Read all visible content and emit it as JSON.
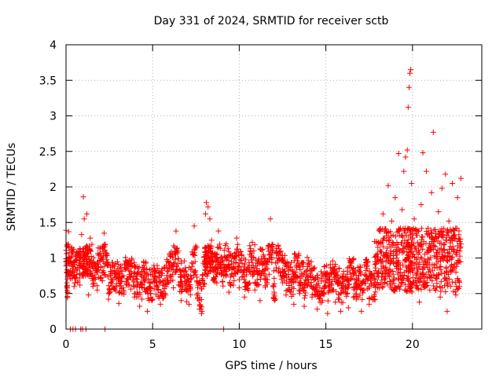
{
  "chart_data": {
    "type": "scatter",
    "title": "Day 331 of 2024, SRMTID for receiver sctb",
    "xlabel": "GPS time / hours",
    "ylabel": "SRMTID / TECUs",
    "xlim": [
      0,
      24
    ],
    "ylim": [
      0,
      4
    ],
    "grid": true,
    "x_ticks": [
      0,
      5,
      10,
      15,
      20
    ],
    "x_tick_labels": [
      "0",
      "5",
      "10",
      "15",
      "20"
    ],
    "y_ticks": [
      0,
      0.5,
      1,
      1.5,
      2,
      2.5,
      3,
      3.5,
      4
    ],
    "y_tick_labels": [
      "0",
      "0.5",
      "1",
      "1.5",
      "2",
      "2.5",
      "3",
      "3.5",
      "4"
    ],
    "marker": "+",
    "color": "#ff0000",
    "series": [
      {
        "name": "SRMTID",
        "points": [
          [
            0.0,
            1.39
          ],
          [
            0.05,
            0.65
          ],
          [
            0.1,
            0.52
          ],
          [
            0.15,
            1.37
          ],
          [
            0.25,
            0.82
          ],
          [
            0.35,
            1.12
          ],
          [
            0.45,
            0.95
          ],
          [
            0.55,
            0.72
          ],
          [
            0.65,
            1.05
          ],
          [
            0.8,
            0.62
          ],
          [
            0.9,
            1.33
          ],
          [
            1.0,
            1.86
          ],
          [
            1.05,
            1.55
          ],
          [
            1.15,
            0.85
          ],
          [
            1.2,
            1.62
          ],
          [
            1.3,
            0.48
          ],
          [
            1.4,
            1.28
          ],
          [
            1.5,
            0.75
          ],
          [
            1.65,
            0.92
          ],
          [
            1.8,
            0.55
          ],
          [
            1.95,
            1.14
          ],
          [
            2.1,
            0.68
          ],
          [
            2.2,
            1.35
          ],
          [
            2.3,
            1.05
          ],
          [
            2.45,
            0.42
          ],
          [
            2.6,
            0.78
          ],
          [
            2.75,
            0.58
          ],
          [
            2.9,
            0.82
          ],
          [
            3.05,
            0.36
          ],
          [
            3.2,
            0.72
          ],
          [
            3.35,
            0.52
          ],
          [
            3.5,
            0.95
          ],
          [
            3.65,
            0.62
          ],
          [
            3.8,
            0.88
          ],
          [
            3.95,
            0.45
          ],
          [
            4.1,
            0.7
          ],
          [
            4.25,
            0.32
          ],
          [
            4.4,
            0.58
          ],
          [
            4.55,
            0.8
          ],
          [
            4.7,
            0.25
          ],
          [
            4.85,
            0.6
          ],
          [
            5.0,
            0.42
          ],
          [
            5.15,
            0.75
          ],
          [
            5.3,
            0.55
          ],
          [
            5.45,
            0.35
          ],
          [
            5.6,
            0.68
          ],
          [
            5.75,
            0.48
          ],
          [
            5.9,
            0.85
          ],
          [
            6.05,
            1.02
          ],
          [
            6.2,
            0.58
          ],
          [
            6.35,
            1.38
          ],
          [
            6.5,
            0.62
          ],
          [
            6.65,
            0.4
          ],
          [
            6.8,
            0.82
          ],
          [
            6.95,
            0.55
          ],
          [
            7.1,
            0.35
          ],
          [
            7.25,
            0.72
          ],
          [
            7.4,
            1.45
          ],
          [
            7.55,
            0.48
          ],
          [
            7.7,
            0.28
          ],
          [
            7.85,
            0.25
          ],
          [
            8.0,
            0.95
          ],
          [
            8.05,
            1.62
          ],
          [
            8.1,
            1.78
          ],
          [
            8.2,
            1.72
          ],
          [
            8.3,
            1.55
          ],
          [
            8.4,
            1.25
          ],
          [
            8.5,
            0.82
          ],
          [
            8.6,
            1.05
          ],
          [
            8.7,
            0.65
          ],
          [
            8.8,
            1.38
          ],
          [
            8.95,
            0.9
          ],
          [
            9.1,
            0.75
          ],
          [
            9.25,
            1.2
          ],
          [
            9.4,
            0.52
          ],
          [
            9.55,
            0.95
          ],
          [
            9.7,
            0.68
          ],
          [
            9.85,
            1.28
          ],
          [
            10.0,
            0.58
          ],
          [
            10.15,
            1.05
          ],
          [
            10.3,
            0.45
          ],
          [
            10.45,
            0.85
          ],
          [
            10.6,
            0.65
          ],
          [
            10.75,
            1.22
          ],
          [
            10.9,
            0.55
          ],
          [
            11.05,
            0.92
          ],
          [
            11.2,
            0.4
          ],
          [
            11.35,
            1.12
          ],
          [
            11.5,
            0.7
          ],
          [
            11.65,
            0.85
          ],
          [
            11.8,
            1.55
          ],
          [
            11.95,
            0.6
          ],
          [
            12.1,
            0.42
          ],
          [
            12.25,
            1.18
          ],
          [
            12.4,
            0.75
          ],
          [
            12.55,
            0.95
          ],
          [
            12.7,
            0.48
          ],
          [
            12.85,
            0.82
          ],
          [
            13.0,
            0.65
          ],
          [
            13.15,
            0.35
          ],
          [
            13.3,
            1.02
          ],
          [
            13.45,
            0.55
          ],
          [
            13.6,
            0.78
          ],
          [
            13.75,
            0.32
          ],
          [
            13.9,
            0.62
          ],
          [
            14.05,
            0.9
          ],
          [
            14.2,
            0.45
          ],
          [
            14.35,
            0.7
          ],
          [
            14.5,
            0.28
          ],
          [
            14.65,
            0.58
          ],
          [
            14.8,
            0.4
          ],
          [
            14.95,
            0.75
          ],
          [
            15.1,
            0.22
          ],
          [
            15.25,
            0.55
          ],
          [
            15.4,
            0.85
          ],
          [
            15.55,
            0.38
          ],
          [
            15.7,
            0.65
          ],
          [
            15.85,
            0.25
          ],
          [
            16.0,
            0.52
          ],
          [
            16.15,
            0.72
          ],
          [
            16.3,
            0.3
          ],
          [
            16.45,
            0.95
          ],
          [
            16.6,
            0.58
          ],
          [
            16.75,
            0.42
          ],
          [
            16.9,
            0.68
          ],
          [
            17.05,
            0.25
          ],
          [
            17.2,
            0.55
          ],
          [
            17.35,
            0.88
          ],
          [
            17.5,
            0.35
          ],
          [
            17.65,
            0.62
          ],
          [
            17.8,
            0.48
          ],
          [
            17.9,
            0.92
          ],
          [
            18.0,
            1.15
          ],
          [
            18.1,
            1.4
          ],
          [
            18.2,
            0.85
          ],
          [
            18.3,
            1.62
          ],
          [
            18.4,
            0.65
          ],
          [
            18.5,
            1.35
          ],
          [
            18.6,
            2.02
          ],
          [
            18.7,
            0.92
          ],
          [
            18.8,
            1.52
          ],
          [
            18.9,
            0.55
          ],
          [
            19.0,
            1.85
          ],
          [
            19.1,
            1.22
          ],
          [
            19.2,
            2.47
          ],
          [
            19.3,
            0.75
          ],
          [
            19.4,
            1.68
          ],
          [
            19.5,
            2.22
          ],
          [
            19.6,
            2.42
          ],
          [
            19.7,
            2.52
          ],
          [
            19.75,
            3.12
          ],
          [
            19.8,
            3.4
          ],
          [
            19.85,
            3.6
          ],
          [
            19.9,
            3.65
          ],
          [
            19.95,
            2.05
          ],
          [
            20.0,
            1.05
          ],
          [
            20.1,
            1.55
          ],
          [
            20.2,
            0.65
          ],
          [
            20.3,
            1.22
          ],
          [
            20.4,
            0.38
          ],
          [
            20.5,
            1.75
          ],
          [
            20.6,
            2.48
          ],
          [
            20.7,
            0.95
          ],
          [
            20.8,
            2.22
          ],
          [
            20.9,
            1.42
          ],
          [
            21.0,
            0.55
          ],
          [
            21.1,
            1.92
          ],
          [
            21.2,
            2.77
          ],
          [
            21.3,
            1.28
          ],
          [
            21.4,
            0.72
          ],
          [
            21.5,
            1.65
          ],
          [
            21.6,
            0.45
          ],
          [
            21.7,
            1.98
          ],
          [
            21.8,
            1.12
          ],
          [
            21.9,
            2.18
          ],
          [
            22.0,
            0.25
          ],
          [
            22.1,
            1.52
          ],
          [
            22.2,
            0.88
          ],
          [
            22.3,
            2.05
          ],
          [
            22.4,
            1.32
          ],
          [
            22.5,
            0.48
          ],
          [
            22.6,
            1.85
          ],
          [
            22.7,
            0.95
          ],
          [
            22.8,
            2.12
          ]
        ],
        "zero_points": [
          0.25,
          0.4,
          0.55,
          0.85,
          0.95,
          1.15,
          2.25,
          9.1
        ]
      }
    ]
  }
}
